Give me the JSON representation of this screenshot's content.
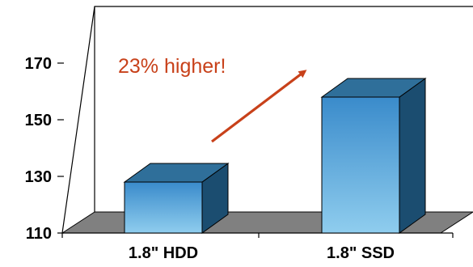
{
  "chart_data": {
    "type": "bar",
    "categories": [
      "1.8\" HDD",
      "1.8\" SSD"
    ],
    "values": [
      128,
      158
    ],
    "title": "",
    "xlabel": "",
    "ylabel": "",
    "ylim": [
      110,
      180
    ],
    "yticks": [
      110,
      130,
      150,
      170
    ],
    "grid": false,
    "legend": "none",
    "annotation": "23% higher!",
    "colors": {
      "bar_front_top": "#3a8bcb",
      "bar_front_bottom": "#8fcdee",
      "bar_top": "#2f6f9a",
      "bar_side": "#1b4d70",
      "floor": "#808080",
      "annotation": "#c8411a"
    }
  }
}
